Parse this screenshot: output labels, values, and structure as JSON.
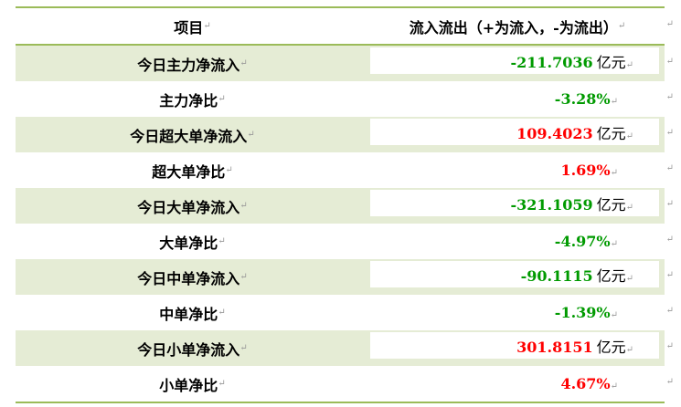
{
  "header": {
    "item": "项目",
    "flow": "流入流出（+为流入，-为流出）"
  },
  "colors": {
    "positive": "#ff0000",
    "negative": "#009a00",
    "shade": "#e5ecd5",
    "border": "#9bbb59"
  },
  "rows": [
    {
      "label": "今日主力净流入",
      "value": "-211.7036",
      "unit": "亿元",
      "sign": "neg"
    },
    {
      "label": "主力净比",
      "value": "-3.28%",
      "sign": "neg"
    },
    {
      "label": "今日超大单净流入",
      "value": "109.4023",
      "unit": "亿元",
      "sign": "pos"
    },
    {
      "label": "超大单净比",
      "value": "1.69%",
      "sign": "pos"
    },
    {
      "label": "今日大单净流入",
      "value": "-321.1059",
      "unit": "亿元",
      "sign": "neg"
    },
    {
      "label": "大单净比",
      "value": "-4.97%",
      "sign": "neg"
    },
    {
      "label": "今日中单净流入",
      "value": "-90.1115",
      "unit": "亿元",
      "sign": "neg"
    },
    {
      "label": "中单净比",
      "value": "-1.39%",
      "sign": "neg"
    },
    {
      "label": "今日小单净流入",
      "value": "301.8151",
      "unit": "亿元",
      "sign": "pos"
    },
    {
      "label": "小单净比",
      "value": "4.67%",
      "sign": "pos"
    }
  ]
}
